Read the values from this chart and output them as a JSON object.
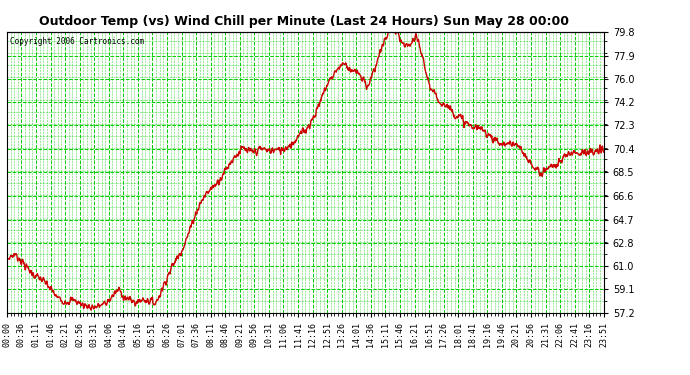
{
  "title": "Outdoor Temp (vs) Wind Chill per Minute (Last 24 Hours) Sun May 28 00:00",
  "copyright": "Copyright 2006 Cartronics.com",
  "background_color": "#ffffff",
  "plot_bg_color": "#ffffff",
  "grid_color": "#00cc00",
  "line_color": "#cc0000",
  "line_width": 1.0,
  "yticks": [
    57.2,
    59.1,
    61.0,
    62.8,
    64.7,
    66.6,
    68.5,
    70.4,
    72.3,
    74.2,
    76.0,
    77.9,
    79.8
  ],
  "ylim": [
    57.2,
    79.8
  ],
  "xtick_labels": [
    "00:00",
    "00:36",
    "01:11",
    "01:46",
    "02:21",
    "02:56",
    "03:31",
    "04:06",
    "04:41",
    "05:16",
    "05:51",
    "06:26",
    "07:01",
    "07:36",
    "08:11",
    "08:46",
    "09:21",
    "09:56",
    "10:31",
    "11:06",
    "11:41",
    "12:16",
    "12:51",
    "13:26",
    "14:01",
    "14:36",
    "15:11",
    "15:46",
    "16:21",
    "16:51",
    "17:26",
    "18:01",
    "18:41",
    "19:16",
    "19:46",
    "20:21",
    "20:56",
    "21:31",
    "22:06",
    "22:41",
    "23:16",
    "23:51"
  ],
  "num_points": 1440
}
